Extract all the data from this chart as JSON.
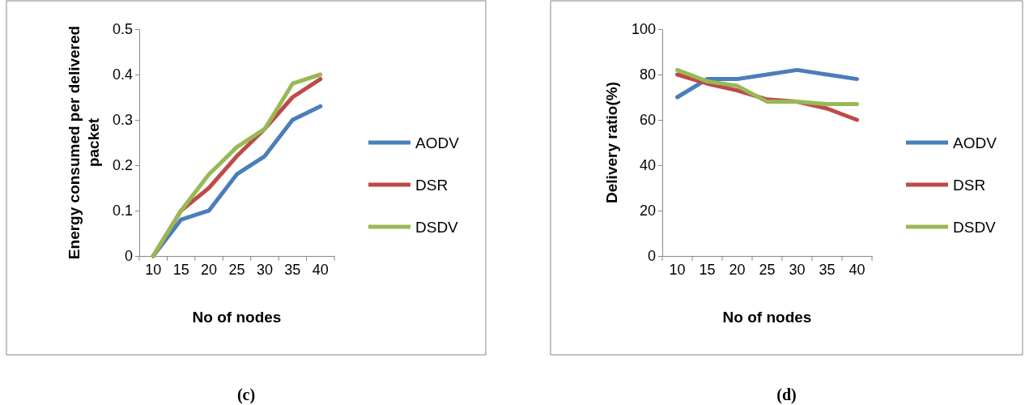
{
  "chart_data": [
    {
      "type": "line",
      "xlabel": "No of nodes",
      "ylabel": "Energy consumed per delivered packet",
      "categories": [
        "10",
        "15",
        "20",
        "25",
        "30",
        "35",
        "40"
      ],
      "ylim": [
        0,
        0.5
      ],
      "yticks": [
        0,
        0.1,
        0.2,
        0.3,
        0.4,
        0.5
      ],
      "legend": "right",
      "grid": false,
      "marker": "none",
      "annotations": [
        "(c)"
      ],
      "series": [
        {
          "name": "AODV",
          "color": "#4a7ebb",
          "values": [
            0,
            0.08,
            0.1,
            0.18,
            0.22,
            0.3,
            0.33
          ]
        },
        {
          "name": "DSR",
          "color": "#be4b48",
          "values": [
            0,
            0.1,
            0.15,
            0.22,
            0.28,
            0.35,
            0.39
          ]
        },
        {
          "name": "DSDV",
          "color": "#98b954",
          "values": [
            0,
            0.1,
            0.18,
            0.24,
            0.28,
            0.38,
            0.4
          ]
        }
      ]
    },
    {
      "type": "line",
      "xlabel": "No of nodes",
      "ylabel": "Delivery ratio(%)",
      "categories": [
        "10",
        "15",
        "20",
        "25",
        "30",
        "35",
        "40"
      ],
      "ylim": [
        0,
        100
      ],
      "yticks": [
        0,
        20,
        40,
        60,
        80,
        100
      ],
      "legend": "right",
      "grid": false,
      "marker": "none",
      "annotations": [
        "(d)"
      ],
      "series": [
        {
          "name": "AODV",
          "color": "#4a7ebb",
          "values": [
            70,
            78,
            78,
            80,
            82,
            80,
            78
          ]
        },
        {
          "name": "DSR",
          "color": "#be4b48",
          "values": [
            80,
            76,
            73,
            69,
            68,
            65,
            60
          ]
        },
        {
          "name": "DSDV",
          "color": "#98b954",
          "values": [
            82,
            77,
            75,
            68,
            68,
            67,
            67
          ]
        }
      ]
    }
  ]
}
